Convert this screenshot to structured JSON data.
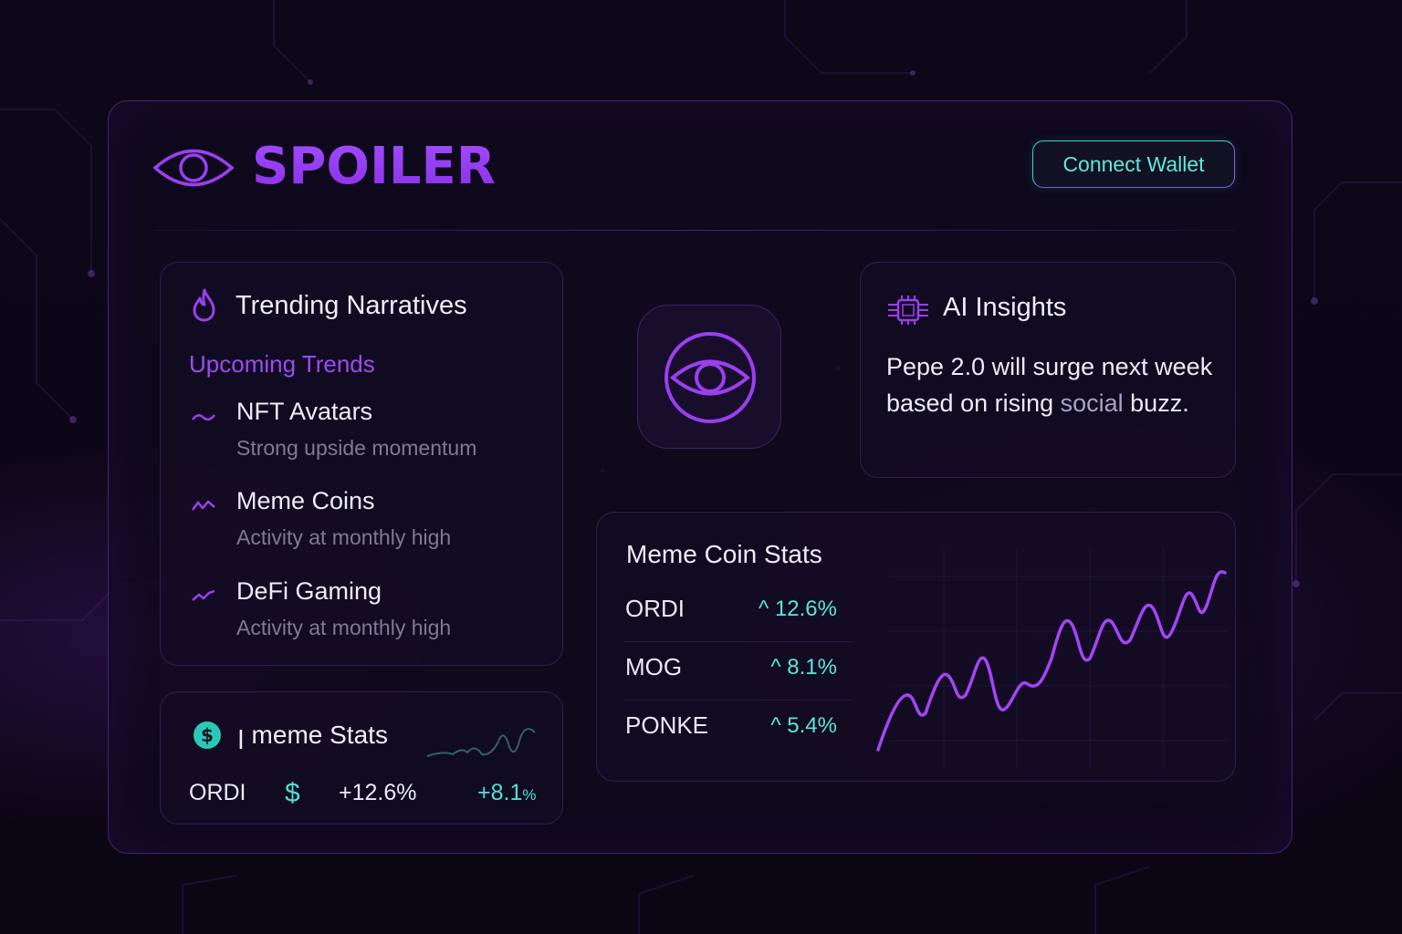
{
  "app": {
    "brand": "SPOILER",
    "connect_label": "Connect Wallet"
  },
  "trending": {
    "title": "Trending Narratives",
    "subtitle": "Upcoming Trends",
    "items": [
      {
        "title": "NFT Avatars",
        "desc": "Strong upside momentum"
      },
      {
        "title": "Meme Coins",
        "desc": "Activity at monthly high"
      },
      {
        "title": "DeFi Gaming",
        "desc": "Activity at monthly high"
      }
    ]
  },
  "ai": {
    "title": "AI Insights",
    "text_main": "Pepe 2.0 will surge next week based on rising ",
    "text_dim": "social",
    "text_end": " buzz."
  },
  "stats": {
    "title": "Meme Coin Stats",
    "rows": [
      {
        "name": "ORDI",
        "change": "^ 12.6%"
      },
      {
        "name": "MOG",
        "change": "^ 8.1%"
      },
      {
        "name": "PONKE",
        "change": "^ 5.4%"
      }
    ]
  },
  "mini": {
    "title": "ꞁ meme Stats",
    "coin": "ORDI",
    "symbol": "$",
    "change1": "+12.6%",
    "change2": "+8.1",
    "change2_unit": "%"
  },
  "colors": {
    "accent": "#9a3ff0",
    "teal": "#4fe0d2",
    "background": "#0c0716"
  },
  "icons": {
    "logo": "eye-icon",
    "trending": "flame-icon",
    "ai": "chip-icon",
    "mini": "dollar-coin-icon"
  }
}
